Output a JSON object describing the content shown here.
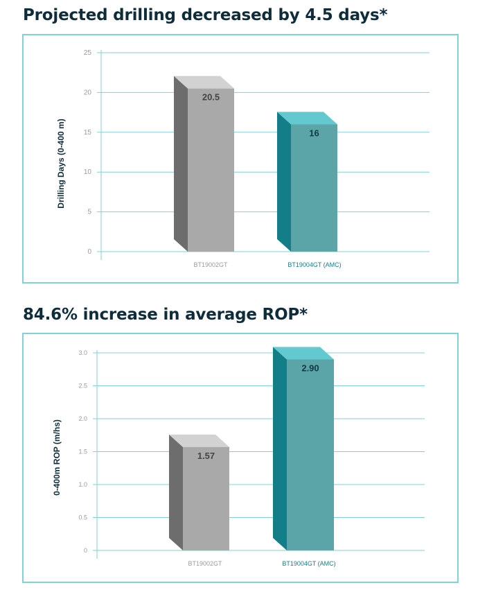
{
  "headings": {
    "top": "Projected drilling decreased by 4.5 days*",
    "bottom": "84.6% increase in average ROP*"
  },
  "colors": {
    "teal_front": "#5ba5a9",
    "teal_side": "#137e87",
    "teal_top": "#62c9cf",
    "grey_front": "#a9a9a9",
    "grey_side": "#6d6d6d",
    "grey_top": "#d2d2d2",
    "gridline": "#7fd3d3",
    "frame": "#7fd3d3",
    "heading_text": "#0f2c3a",
    "tick_text": "#9a9a9a"
  },
  "chart_data": [
    {
      "type": "bar",
      "title": "Projected drilling decreased by 4.5 days*",
      "ylabel": "Drilling Days (0-400 m)",
      "xlabel": "",
      "categories": [
        "BT19002GT",
        "BT19004GT (AMC)"
      ],
      "values": [
        20.5,
        16
      ],
      "value_labels": [
        "20.5",
        "16"
      ],
      "ylim": [
        0,
        25
      ],
      "yticks": [
        "0",
        "5",
        "10",
        "15",
        "20",
        "25"
      ],
      "grid": true,
      "bar_colors": [
        "grey",
        "teal"
      ]
    },
    {
      "type": "bar",
      "title": "84.6% increase in average ROP*",
      "ylabel": "0-400m ROP (m/hs)",
      "xlabel": "",
      "categories": [
        "BT19002GT",
        "BT19004GT (AMC)"
      ],
      "values": [
        1.57,
        2.9
      ],
      "value_labels": [
        "1.57",
        "2.90"
      ],
      "ylim": [
        0,
        3
      ],
      "yticks": [
        "0",
        "0.5",
        "1.0",
        "1.5",
        "2.0",
        "2.5",
        "3.0"
      ],
      "grid": true,
      "bar_colors": [
        "grey",
        "teal"
      ]
    }
  ]
}
